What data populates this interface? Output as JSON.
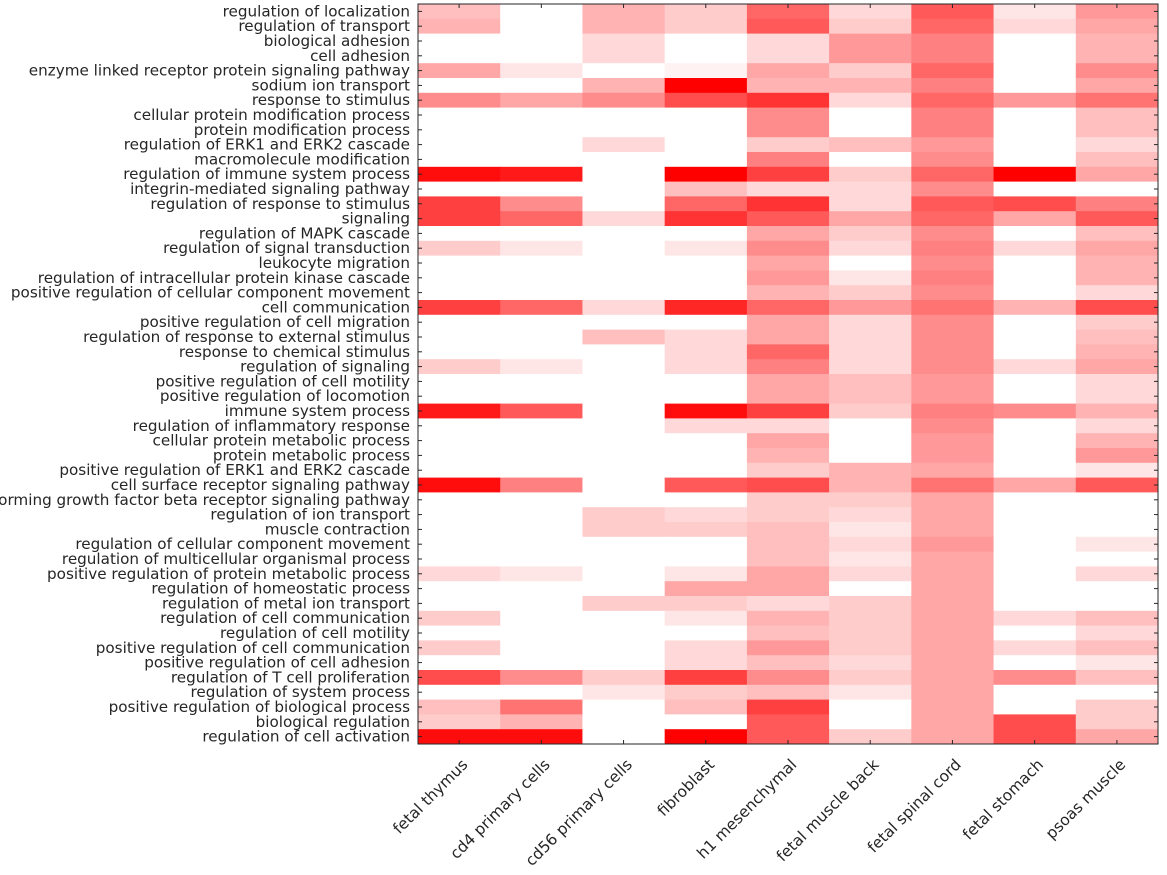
{
  "chart_data": {
    "type": "heatmap",
    "color_scale": {
      "low": "#ffffff",
      "high": "#ff0000"
    },
    "value_range": [
      0,
      1
    ],
    "columns": [
      "fetal thymus",
      "cd4 primary cells",
      "cd56 primary cells",
      "fibroblast",
      "h1 mesenchymal",
      "fetal muscle back",
      "fetal spinal cord",
      "fetal stomach",
      "psoas muscle"
    ],
    "rows": [
      "regulation of localization",
      "regulation of transport",
      "biological adhesion",
      "cell adhesion",
      "enzyme linked receptor protein signaling pathway",
      "sodium ion transport",
      "response to stimulus",
      "cellular protein modification process",
      "protein modification process",
      "regulation of ERK1 and ERK2 cascade",
      "macromolecule modification",
      "regulation of immune system process",
      "integrin-mediated signaling pathway",
      "regulation of response to stimulus",
      "signaling",
      "regulation of MAPK cascade",
      "regulation of signal transduction",
      "leukocyte migration",
      "regulation of intracellular protein kinase cascade",
      "positive regulation of cellular component movement",
      "cell communication",
      "positive regulation of cell migration",
      "regulation of response to external stimulus",
      "response to chemical stimulus",
      "regulation of signaling",
      "positive regulation of cell motility",
      "positive regulation of locomotion",
      "immune system process",
      "regulation of inflammatory response",
      "cellular protein metabolic process",
      "protein metabolic process",
      "positive regulation of ERK1 and ERK2 cascade",
      "cell surface receptor signaling pathway",
      "transforming growth factor beta receptor signaling pathway",
      "regulation of ion transport",
      "muscle contraction",
      "regulation of cellular component movement",
      "regulation of multicellular organismal process",
      "positive regulation of protein metabolic process",
      "regulation of homeostatic process",
      "regulation of metal ion transport",
      "regulation of cell communication",
      "regulation of cell motility",
      "positive regulation of cell communication",
      "positive regulation of cell adhesion",
      "regulation of T cell proliferation",
      "regulation of system process",
      "positive regulation of biological process",
      "biological regulation",
      "regulation of cell activation"
    ],
    "values": [
      [
        0.25,
        0.0,
        0.3,
        0.2,
        0.6,
        0.15,
        0.65,
        0.1,
        0.4
      ],
      [
        0.3,
        0.0,
        0.3,
        0.2,
        0.65,
        0.2,
        0.6,
        0.15,
        0.35
      ],
      [
        0.0,
        0.0,
        0.15,
        0.0,
        0.15,
        0.4,
        0.5,
        0.0,
        0.3
      ],
      [
        0.0,
        0.0,
        0.15,
        0.0,
        0.15,
        0.4,
        0.5,
        0.0,
        0.3
      ],
      [
        0.35,
        0.1,
        0.0,
        0.05,
        0.35,
        0.2,
        0.6,
        0.0,
        0.45
      ],
      [
        0.0,
        0.0,
        0.3,
        1.0,
        0.3,
        0.3,
        0.5,
        0.0,
        0.35
      ],
      [
        0.45,
        0.35,
        0.45,
        0.7,
        0.8,
        0.15,
        0.6,
        0.4,
        0.55
      ],
      [
        0.0,
        0.0,
        0.0,
        0.0,
        0.45,
        0.0,
        0.5,
        0.0,
        0.25
      ],
      [
        0.0,
        0.0,
        0.0,
        0.0,
        0.45,
        0.0,
        0.5,
        0.0,
        0.25
      ],
      [
        0.0,
        0.0,
        0.15,
        0.0,
        0.2,
        0.25,
        0.4,
        0.0,
        0.15
      ],
      [
        0.0,
        0.0,
        0.0,
        0.0,
        0.5,
        0.0,
        0.45,
        0.0,
        0.25
      ],
      [
        0.95,
        0.9,
        0.0,
        1.0,
        0.75,
        0.2,
        0.6,
        1.0,
        0.35
      ],
      [
        0.0,
        0.0,
        0.0,
        0.25,
        0.15,
        0.15,
        0.45,
        0.0,
        0.0
      ],
      [
        0.75,
        0.45,
        0.0,
        0.6,
        0.8,
        0.15,
        0.65,
        0.7,
        0.5
      ],
      [
        0.75,
        0.6,
        0.15,
        0.8,
        0.65,
        0.35,
        0.6,
        0.35,
        0.65
      ],
      [
        0.0,
        0.0,
        0.0,
        0.0,
        0.35,
        0.2,
        0.45,
        0.0,
        0.25
      ],
      [
        0.2,
        0.1,
        0.0,
        0.1,
        0.45,
        0.15,
        0.5,
        0.15,
        0.35
      ],
      [
        0.0,
        0.0,
        0.0,
        0.0,
        0.35,
        0.0,
        0.45,
        0.0,
        0.3
      ],
      [
        0.0,
        0.0,
        0.0,
        0.0,
        0.4,
        0.1,
        0.5,
        0.0,
        0.3
      ],
      [
        0.0,
        0.0,
        0.0,
        0.0,
        0.3,
        0.2,
        0.45,
        0.0,
        0.15
      ],
      [
        0.75,
        0.6,
        0.15,
        0.85,
        0.6,
        0.4,
        0.55,
        0.3,
        0.7
      ],
      [
        0.0,
        0.0,
        0.0,
        0.0,
        0.35,
        0.15,
        0.45,
        0.0,
        0.2
      ],
      [
        0.0,
        0.0,
        0.25,
        0.15,
        0.35,
        0.15,
        0.45,
        0.0,
        0.25
      ],
      [
        0.0,
        0.0,
        0.0,
        0.15,
        0.6,
        0.15,
        0.45,
        0.0,
        0.3
      ],
      [
        0.2,
        0.1,
        0.0,
        0.15,
        0.5,
        0.15,
        0.45,
        0.15,
        0.35
      ],
      [
        0.0,
        0.0,
        0.0,
        0.0,
        0.35,
        0.25,
        0.4,
        0.0,
        0.15
      ],
      [
        0.0,
        0.0,
        0.0,
        0.0,
        0.35,
        0.25,
        0.4,
        0.0,
        0.15
      ],
      [
        0.9,
        0.65,
        0.0,
        0.95,
        0.75,
        0.2,
        0.5,
        0.45,
        0.3
      ],
      [
        0.0,
        0.0,
        0.0,
        0.15,
        0.15,
        0.0,
        0.45,
        0.0,
        0.15
      ],
      [
        0.0,
        0.0,
        0.0,
        0.0,
        0.35,
        0.0,
        0.4,
        0.0,
        0.3
      ],
      [
        0.0,
        0.0,
        0.0,
        0.0,
        0.3,
        0.0,
        0.4,
        0.0,
        0.4
      ],
      [
        0.0,
        0.0,
        0.0,
        0.0,
        0.2,
        0.3,
        0.35,
        0.0,
        0.1
      ],
      [
        0.95,
        0.5,
        0.0,
        0.65,
        0.7,
        0.3,
        0.55,
        0.35,
        0.65
      ],
      [
        0.0,
        0.0,
        0.0,
        0.0,
        0.2,
        0.2,
        0.35,
        0.0,
        0.0
      ],
      [
        0.0,
        0.0,
        0.2,
        0.15,
        0.2,
        0.15,
        0.35,
        0.0,
        0.0
      ],
      [
        0.0,
        0.0,
        0.2,
        0.2,
        0.25,
        0.1,
        0.35,
        0.0,
        0.0
      ],
      [
        0.0,
        0.0,
        0.0,
        0.0,
        0.25,
        0.15,
        0.4,
        0.0,
        0.1
      ],
      [
        0.0,
        0.0,
        0.0,
        0.0,
        0.25,
        0.1,
        0.35,
        0.0,
        0.0
      ],
      [
        0.15,
        0.1,
        0.0,
        0.1,
        0.35,
        0.15,
        0.35,
        0.0,
        0.15
      ],
      [
        0.0,
        0.0,
        0.0,
        0.35,
        0.35,
        0.0,
        0.35,
        0.0,
        0.0
      ],
      [
        0.0,
        0.0,
        0.2,
        0.2,
        0.15,
        0.2,
        0.35,
        0.0,
        0.0
      ],
      [
        0.2,
        0.0,
        0.0,
        0.1,
        0.3,
        0.2,
        0.35,
        0.15,
        0.25
      ],
      [
        0.0,
        0.0,
        0.0,
        0.0,
        0.25,
        0.2,
        0.35,
        0.0,
        0.15
      ],
      [
        0.2,
        0.0,
        0.0,
        0.15,
        0.4,
        0.2,
        0.35,
        0.15,
        0.25
      ],
      [
        0.0,
        0.0,
        0.0,
        0.15,
        0.25,
        0.15,
        0.35,
        0.0,
        0.1
      ],
      [
        0.7,
        0.45,
        0.2,
        0.75,
        0.45,
        0.2,
        0.35,
        0.45,
        0.25
      ],
      [
        0.0,
        0.0,
        0.1,
        0.2,
        0.25,
        0.1,
        0.35,
        0.0,
        0.0
      ],
      [
        0.25,
        0.55,
        0.0,
        0.25,
        0.75,
        0.0,
        0.35,
        0.0,
        0.2
      ],
      [
        0.2,
        0.3,
        0.0,
        0.0,
        0.65,
        0.0,
        0.35,
        0.7,
        0.2
      ],
      [
        0.95,
        0.95,
        0.0,
        1.0,
        0.65,
        0.2,
        0.35,
        0.7,
        0.35
      ]
    ]
  }
}
